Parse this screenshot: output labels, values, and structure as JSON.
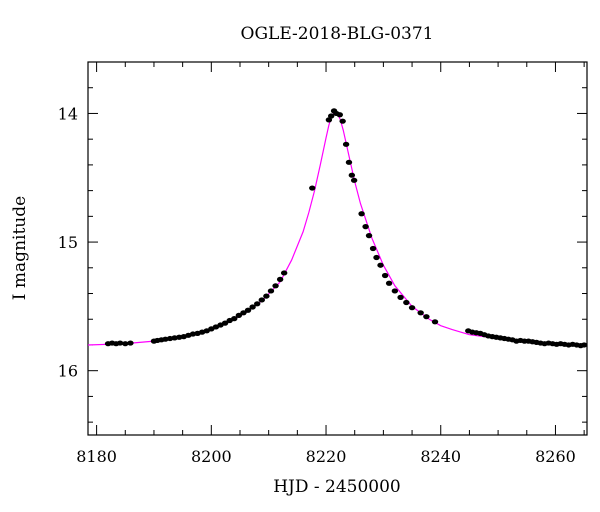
{
  "chart_data": {
    "type": "scatter",
    "title": "OGLE-2018-BLG-0371",
    "xlabel": "HJD - 2450000",
    "ylabel": "I magnitude",
    "xlim": [
      8178.5,
      8265.5
    ],
    "ylim": [
      16.5,
      13.6
    ],
    "y_inverted": true,
    "x_ticks": [
      8180,
      8200,
      8220,
      8240,
      8260
    ],
    "y_ticks": [
      14,
      15,
      16
    ],
    "grid": false,
    "series": [
      {
        "kind": "points",
        "color": "#000000",
        "x": [
          8182.0,
          8182.7,
          8183.4,
          8184.1,
          8185.0,
          8185.9,
          8190.0,
          8190.6,
          8191.3,
          8192.0,
          8192.8,
          8193.6,
          8194.4,
          8195.2,
          8196.0,
          8196.8,
          8197.6,
          8198.4,
          8199.2,
          8200.0,
          8200.8,
          8201.6,
          8202.4,
          8203.2,
          8204.0,
          8204.8,
          8205.6,
          8206.4,
          8207.2,
          8208.0,
          8208.8,
          8209.6,
          8210.4,
          8211.2,
          8212.0,
          8212.7,
          8217.6,
          8220.5,
          8220.9,
          8221.4,
          8221.8,
          8222.4,
          8222.9,
          8223.5,
          8224.0,
          8224.5,
          8224.9,
          8226.2,
          8226.9,
          8227.5,
          8228.2,
          8228.8,
          8229.5,
          8230.3,
          8231.0,
          8232.0,
          8233.0,
          8234.0,
          8235.0,
          8236.5,
          8237.5,
          8239.0,
          8244.8,
          8245.5,
          8246.2,
          8246.9,
          8247.6,
          8248.3,
          8249.0,
          8249.7,
          8250.4,
          8251.1,
          8251.8,
          8252.5,
          8253.2,
          8253.9,
          8254.6,
          8255.3,
          8256.0,
          8256.7,
          8257.4,
          8258.1,
          8258.8,
          8259.5,
          8260.2,
          8260.9,
          8261.6,
          8262.3,
          8263.0,
          8263.7,
          8264.4,
          8265.0
        ],
        "y": [
          15.79,
          15.785,
          15.79,
          15.785,
          15.79,
          15.785,
          15.77,
          15.765,
          15.76,
          15.755,
          15.75,
          15.745,
          15.74,
          15.735,
          15.725,
          15.715,
          15.71,
          15.7,
          15.69,
          15.675,
          15.66,
          15.645,
          15.63,
          15.61,
          15.595,
          15.57,
          15.55,
          15.53,
          15.505,
          15.48,
          15.45,
          15.42,
          15.38,
          15.34,
          15.29,
          15.24,
          14.58,
          14.05,
          14.02,
          13.98,
          14.0,
          14.01,
          14.06,
          14.24,
          14.38,
          14.48,
          14.52,
          14.78,
          14.88,
          14.95,
          15.05,
          15.12,
          15.18,
          15.26,
          15.32,
          15.38,
          15.43,
          15.47,
          15.51,
          15.55,
          15.58,
          15.62,
          15.69,
          15.7,
          15.705,
          15.71,
          15.72,
          15.73,
          15.735,
          15.74,
          15.745,
          15.75,
          15.755,
          15.76,
          15.77,
          15.765,
          15.77,
          15.77,
          15.775,
          15.78,
          15.785,
          15.79,
          15.785,
          15.79,
          15.795,
          15.79,
          15.795,
          15.8,
          15.795,
          15.8,
          15.805,
          15.8
        ]
      },
      {
        "kind": "model",
        "color": "#ff00ff",
        "x": [
          8178.5,
          8185,
          8190,
          8195,
          8200,
          8203,
          8206,
          8209,
          8212,
          8214,
          8216,
          8217,
          8218,
          8219,
          8220,
          8220.5,
          8221,
          8221.5,
          8222,
          8222.5,
          8223,
          8224,
          8225,
          8226,
          8228,
          8230,
          8232,
          8235,
          8238,
          8240,
          8242,
          8245,
          8250,
          8255,
          8260,
          8265.5
        ],
        "y": [
          15.8,
          15.79,
          15.77,
          15.74,
          15.68,
          15.62,
          15.55,
          15.45,
          15.31,
          15.14,
          14.92,
          14.77,
          14.6,
          14.4,
          14.19,
          14.09,
          14.02,
          13.99,
          14.0,
          14.05,
          14.13,
          14.33,
          14.53,
          14.7,
          14.97,
          15.18,
          15.34,
          15.5,
          15.6,
          15.65,
          15.68,
          15.72,
          15.75,
          15.77,
          15.785,
          15.795
        ]
      }
    ]
  }
}
